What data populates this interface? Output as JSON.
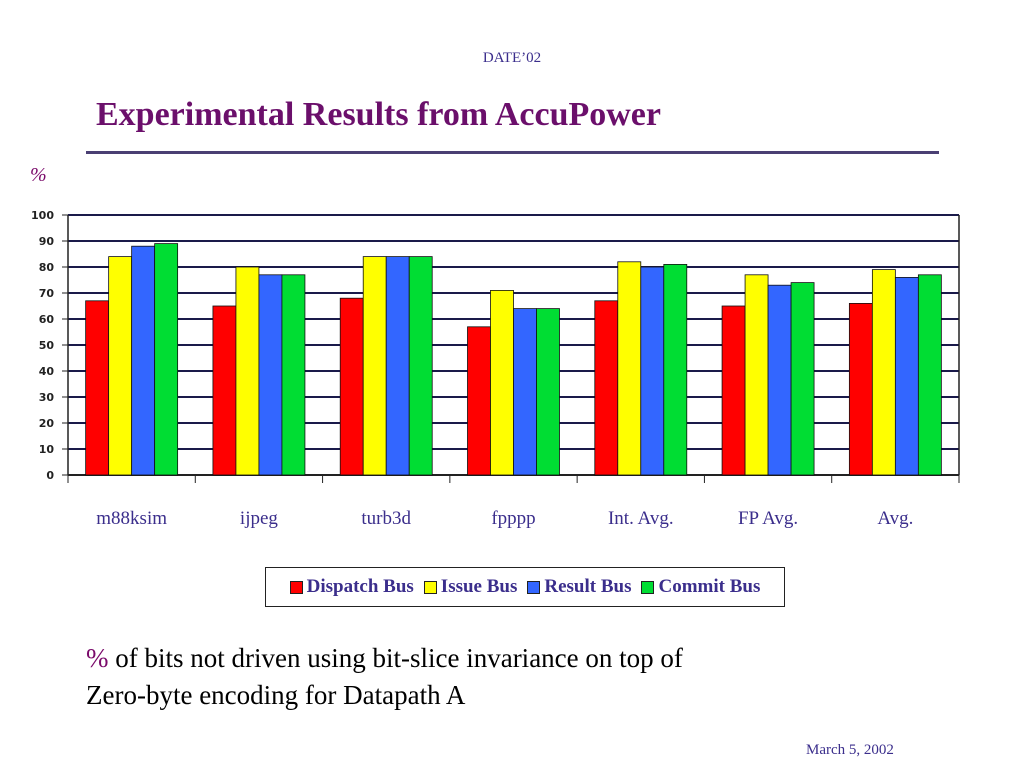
{
  "header": {
    "conference": "DATE’02"
  },
  "title": "Experimental Results from AccuPower",
  "chart_data": {
    "type": "bar",
    "ylabel": "%",
    "ylim": [
      0,
      100
    ],
    "yticks": [
      0,
      10,
      20,
      30,
      40,
      50,
      60,
      70,
      80,
      90,
      100
    ],
    "grid": true,
    "legend_position": "bottom",
    "categories": [
      "m88ksim",
      "ijpeg",
      "turb3d",
      "fpppp",
      "Int. Avg.",
      "FP Avg.",
      "Avg."
    ],
    "series": [
      {
        "name": "Dispatch Bus",
        "color": "#ff0000",
        "values": [
          67,
          65,
          68,
          57,
          67,
          65,
          66
        ]
      },
      {
        "name": "Issue Bus",
        "color": "#ffff00",
        "values": [
          84,
          80,
          84,
          71,
          82,
          77,
          79
        ]
      },
      {
        "name": "Result Bus",
        "color": "#3366ff",
        "values": [
          88,
          77,
          84,
          64,
          80,
          73,
          76
        ]
      },
      {
        "name": "Commit Bus",
        "color": "#00dd33",
        "values": [
          89,
          77,
          84,
          64,
          81,
          74,
          77
        ]
      }
    ]
  },
  "caption": {
    "percent_symbol": "%",
    "line1": " of bits not driven using bit-slice invariance on top of",
    "line2": "Zero-byte encoding for Datapath A"
  },
  "footer": {
    "date": "March 5, 2002"
  }
}
